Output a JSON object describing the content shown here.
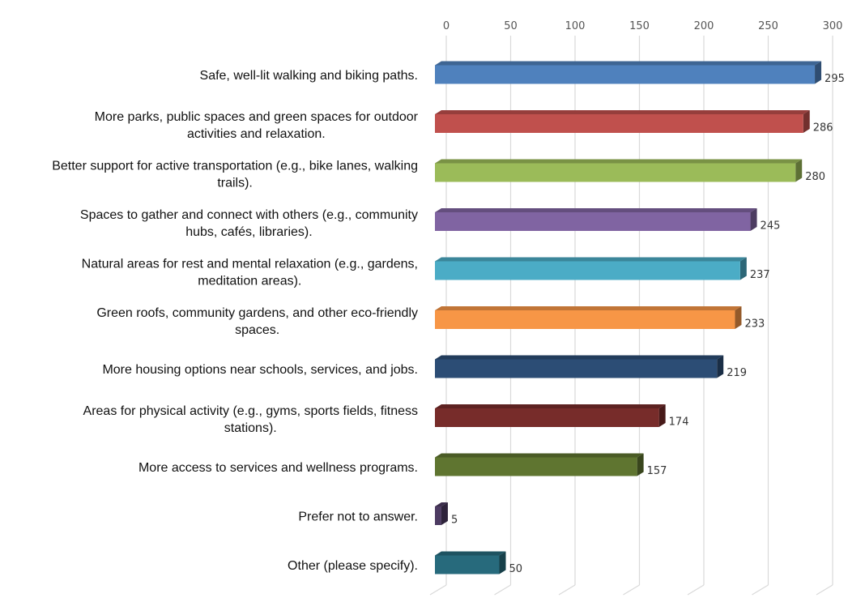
{
  "chart_data": {
    "type": "bar",
    "orientation": "horizontal",
    "title": "",
    "xlabel": "",
    "ylabel": "",
    "xlim": [
      0,
      300
    ],
    "ticks": [
      0,
      50,
      100,
      150,
      200,
      250,
      300
    ],
    "tick_labels": [
      "0",
      "50",
      "100",
      "150",
      "200",
      "250",
      "300"
    ],
    "grid": true,
    "categories": [
      [
        "Safe, well-lit walking and biking paths."
      ],
      [
        "More parks, public spaces and green spaces for outdoor",
        "activities and relaxation."
      ],
      [
        "Better support for active transportation (e.g., bike lanes, walking",
        "trails)."
      ],
      [
        "Spaces to gather and connect with others (e.g., community",
        "hubs, cafés, libraries)."
      ],
      [
        "Natural areas for rest and mental relaxation (e.g., gardens,",
        "meditation areas)."
      ],
      [
        "Green roofs, community gardens, and other eco-friendly",
        "spaces."
      ],
      [
        "More housing options near schools, services, and jobs."
      ],
      [
        "Areas for physical activity (e.g., gyms, sports fields, fitness",
        "stations)."
      ],
      [
        "More access to services and wellness programs."
      ],
      [
        "Prefer not to answer."
      ],
      [
        "Other (please specify)."
      ]
    ],
    "values": [
      295,
      286,
      280,
      245,
      237,
      233,
      219,
      174,
      157,
      5,
      50
    ],
    "value_labels": [
      "295",
      "286",
      "280",
      "245",
      "237",
      "233",
      "219",
      "174",
      "157",
      "5",
      "50"
    ],
    "colors": [
      "#4f81bd",
      "#c0504d",
      "#9bbb59",
      "#8064a2",
      "#4bacc6",
      "#f79646",
      "#2c4d75",
      "#772c2a",
      "#5f7530",
      "#4d3b62",
      "#276a7c"
    ]
  }
}
